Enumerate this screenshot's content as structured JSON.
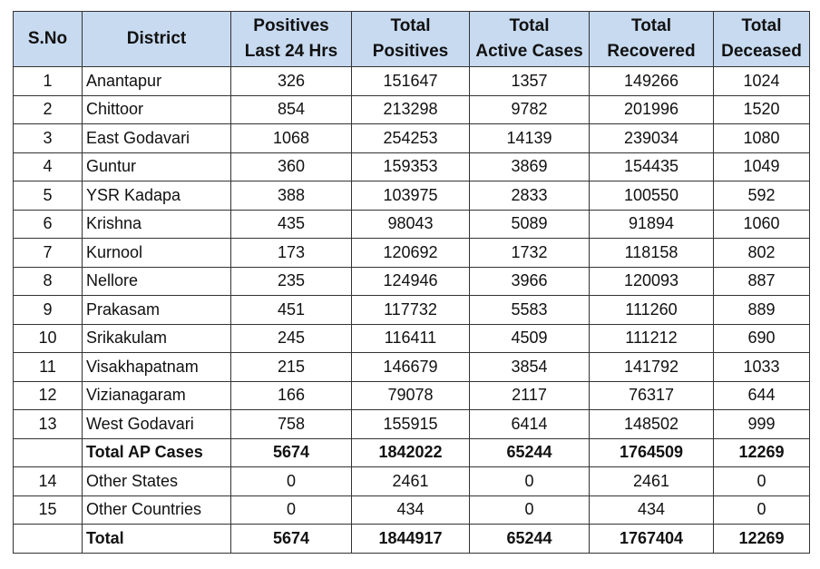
{
  "headers": {
    "sno": "S.No",
    "district": "District",
    "positives_24h": [
      "Positives",
      "Last 24 Hrs"
    ],
    "total_positives": [
      "Total",
      "Positives"
    ],
    "active": [
      "Total",
      "Active Cases"
    ],
    "recovered": [
      "Total",
      "Recovered"
    ],
    "deceased": [
      "Total",
      "Deceased"
    ]
  },
  "rows": [
    {
      "sno": "1",
      "district": "Anantapur",
      "pos24": "326",
      "totalPos": "151647",
      "active": "1357",
      "recovered": "149266",
      "deceased": "1024",
      "bold": false
    },
    {
      "sno": "2",
      "district": "Chittoor",
      "pos24": "854",
      "totalPos": "213298",
      "active": "9782",
      "recovered": "201996",
      "deceased": "1520",
      "bold": false
    },
    {
      "sno": "3",
      "district": "East Godavari",
      "pos24": "1068",
      "totalPos": "254253",
      "active": "14139",
      "recovered": "239034",
      "deceased": "1080",
      "bold": false
    },
    {
      "sno": "4",
      "district": "Guntur",
      "pos24": "360",
      "totalPos": "159353",
      "active": "3869",
      "recovered": "154435",
      "deceased": "1049",
      "bold": false
    },
    {
      "sno": "5",
      "district": "YSR Kadapa",
      "pos24": "388",
      "totalPos": "103975",
      "active": "2833",
      "recovered": "100550",
      "deceased": "592",
      "bold": false
    },
    {
      "sno": "6",
      "district": "Krishna",
      "pos24": "435",
      "totalPos": "98043",
      "active": "5089",
      "recovered": "91894",
      "deceased": "1060",
      "bold": false
    },
    {
      "sno": "7",
      "district": "Kurnool",
      "pos24": "173",
      "totalPos": "120692",
      "active": "1732",
      "recovered": "118158",
      "deceased": "802",
      "bold": false
    },
    {
      "sno": "8",
      "district": "Nellore",
      "pos24": "235",
      "totalPos": "124946",
      "active": "3966",
      "recovered": "120093",
      "deceased": "887",
      "bold": false
    },
    {
      "sno": "9",
      "district": "Prakasam",
      "pos24": "451",
      "totalPos": "117732",
      "active": "5583",
      "recovered": "111260",
      "deceased": "889",
      "bold": false
    },
    {
      "sno": "10",
      "district": "Srikakulam",
      "pos24": "245",
      "totalPos": "116411",
      "active": "4509",
      "recovered": "111212",
      "deceased": "690",
      "bold": false
    },
    {
      "sno": "11",
      "district": "Visakhapatnam",
      "pos24": "215",
      "totalPos": "146679",
      "active": "3854",
      "recovered": "141792",
      "deceased": "1033",
      "bold": false
    },
    {
      "sno": "12",
      "district": "Vizianagaram",
      "pos24": "166",
      "totalPos": "79078",
      "active": "2117",
      "recovered": "76317",
      "deceased": "644",
      "bold": false
    },
    {
      "sno": "13",
      "district": "West Godavari",
      "pos24": "758",
      "totalPos": "155915",
      "active": "6414",
      "recovered": "148502",
      "deceased": "999",
      "bold": false
    },
    {
      "sno": "",
      "district": "Total AP Cases",
      "pos24": "5674",
      "totalPos": "1842022",
      "active": "65244",
      "recovered": "1764509",
      "deceased": "12269",
      "bold": true
    },
    {
      "sno": "14",
      "district": "Other States",
      "pos24": "0",
      "totalPos": "2461",
      "active": "0",
      "recovered": "2461",
      "deceased": "0",
      "bold": false
    },
    {
      "sno": "15",
      "district": "Other Countries",
      "pos24": "0",
      "totalPos": "434",
      "active": "0",
      "recovered": "434",
      "deceased": "0",
      "bold": false
    },
    {
      "sno": "",
      "district": "Total",
      "pos24": "5674",
      "totalPos": "1844917",
      "active": "65244",
      "recovered": "1767404",
      "deceased": "12269",
      "bold": true
    }
  ],
  "colors": {
    "header_bg": "#c7daf0",
    "border": "#333333"
  }
}
